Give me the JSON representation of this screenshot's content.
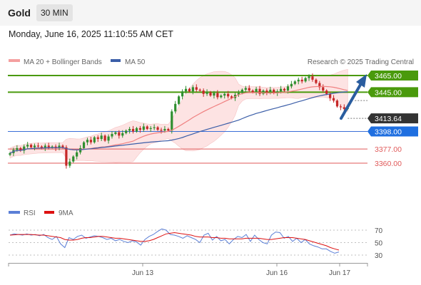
{
  "header": {
    "title": "Gold",
    "timeframe": "30 MIN"
  },
  "datetime": "Monday, June 16, 2025 11:10:55 AM CET",
  "legend": {
    "ma20": "MA 20 + Bollinger Bands",
    "ma50": "MA 50",
    "rsi": "RSI",
    "ma9": "9MA"
  },
  "credit": "Research © 2025 Trading Central",
  "colors": {
    "bull_level": "#4a9a0c",
    "bear_level": "#e05a5a",
    "pivot": "#3a6fd8",
    "price_tag": "#333333",
    "arrow": "#2a5d9f",
    "ma20": "#f08080",
    "ma50": "#3b5ea8",
    "rsi": "#5b7fd6",
    "rsi_ma": "#dd1111"
  },
  "chart_data": [
    {
      "type": "candlestick",
      "title": "Gold",
      "timeframe": "30 MIN",
      "x_labels": [
        "Jun 13",
        "Jun 16",
        "Jun 17"
      ],
      "ylim": [
        3340,
        3480
      ],
      "levels": [
        {
          "value": 3465.0,
          "label": "3465.00",
          "kind": "resistance"
        },
        {
          "value": 3445.0,
          "label": "3445.00",
          "kind": "resistance"
        },
        {
          "value": 3398.0,
          "label": "3398.00",
          "kind": "pivot"
        },
        {
          "value": 3377.0,
          "label": "3377.00",
          "kind": "support"
        },
        {
          "value": 3360.0,
          "label": "3360.00",
          "kind": "support"
        }
      ],
      "last_price": {
        "value": 3413.64,
        "label": "3413.64"
      },
      "series": [
        {
          "name": "MA 20 + Bollinger Bands",
          "role": "bands"
        },
        {
          "name": "MA 50",
          "role": "moving-average"
        }
      ],
      "closes": [
        3372,
        3376,
        3378,
        3375,
        3380,
        3382,
        3379,
        3381,
        3380,
        3378,
        3381,
        3379,
        3380,
        3378,
        3381,
        3379,
        3357,
        3362,
        3368,
        3373,
        3378,
        3385,
        3388,
        3385,
        3391,
        3389,
        3393,
        3387,
        3392,
        3395,
        3397,
        3393,
        3396,
        3399,
        3401,
        3398,
        3402,
        3400,
        3404,
        3401,
        3402,
        3403,
        3400,
        3399,
        3401,
        3399,
        3422,
        3431,
        3440,
        3446,
        3449,
        3446,
        3451,
        3448,
        3447,
        3443,
        3445,
        3441,
        3444,
        3439,
        3441,
        3443,
        3440,
        3438,
        3442,
        3444,
        3448,
        3450,
        3447,
        3445,
        3449,
        3443,
        3447,
        3445,
        3448,
        3444,
        3446,
        3449,
        3447,
        3452,
        3455,
        3458,
        3460,
        3458,
        3462,
        3464,
        3460,
        3456,
        3451,
        3447,
        3443,
        3438,
        3435,
        3428,
        3427,
        3425,
        3426
      ],
      "annotation": {
        "type": "arrow",
        "from_value": 3413.64,
        "to_value": 3465.0
      }
    },
    {
      "type": "line",
      "title": "RSI",
      "ylim": [
        20,
        80
      ],
      "y_ticks": [
        70,
        50,
        30
      ],
      "series": [
        {
          "name": "RSI",
          "values": [
            62,
            64,
            63,
            62,
            64,
            62,
            63,
            61,
            63,
            58,
            55,
            60,
            48,
            42,
            58,
            55,
            60,
            62,
            57,
            59,
            61,
            60,
            58,
            55,
            57,
            53,
            55,
            52,
            50,
            53,
            51,
            46,
            55,
            60,
            63,
            68,
            72,
            70,
            63,
            62,
            60,
            57,
            61,
            58,
            55,
            50,
            62,
            65,
            54,
            60,
            53,
            55,
            48,
            55,
            60,
            58,
            63,
            52,
            62,
            55,
            50,
            48,
            62,
            67,
            66,
            57,
            60,
            52,
            57,
            50,
            55,
            48,
            45,
            43,
            40,
            40,
            36,
            33,
            35
          ]
        },
        {
          "name": "9MA",
          "values": [
            62,
            62.5,
            63,
            63,
            63,
            63,
            62.5,
            62,
            62,
            61,
            60,
            59,
            58,
            55,
            54,
            54,
            55,
            57,
            58,
            58,
            59,
            60,
            60,
            59,
            58,
            57,
            57,
            56,
            55,
            54,
            53,
            52,
            52,
            53,
            55,
            58,
            61,
            64,
            65,
            66,
            65,
            64,
            63,
            62,
            60,
            59,
            59,
            59,
            58,
            58,
            57,
            57,
            56,
            56,
            56,
            56,
            57,
            57,
            57,
            57,
            56,
            55,
            55,
            56,
            57,
            58,
            58,
            58,
            57,
            56,
            55,
            53,
            51,
            49,
            47,
            45,
            42,
            40,
            38
          ]
        }
      ]
    }
  ]
}
